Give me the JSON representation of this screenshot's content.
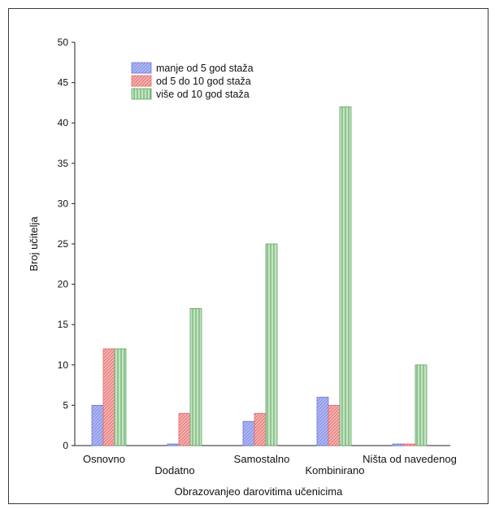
{
  "chart_data": {
    "type": "bar",
    "xlabel": "Obrazovanjeo darovitima učenicima",
    "ylabel": "Broj učitelja",
    "ylim": [
      0,
      50
    ],
    "yticks": [
      "0",
      "5",
      "10",
      "15",
      "20",
      "25",
      "30",
      "35",
      "40",
      "45",
      "50"
    ],
    "categories": [
      "Osnovno",
      "Dodatno",
      "Samostalno",
      "Kombinirano",
      "Ništa od navedenog"
    ],
    "series": [
      {
        "name": "manje od 5 god staža",
        "values": [
          5,
          0.2,
          3,
          6,
          0.2
        ],
        "color": "#aeb6f4",
        "hatch": "#6b78d8"
      },
      {
        "name": "od 5 do 10 god staža",
        "values": [
          12,
          4,
          4,
          5,
          0.2
        ],
        "color": "#f6b3b3",
        "hatch": "#e26b6b"
      },
      {
        "name": "više od 10 god staža",
        "values": [
          12,
          17,
          25,
          42,
          10
        ],
        "color": "#c3e4c3",
        "hatch": "#5ea55e"
      }
    ],
    "legend_position": "top-left",
    "grid": false
  }
}
